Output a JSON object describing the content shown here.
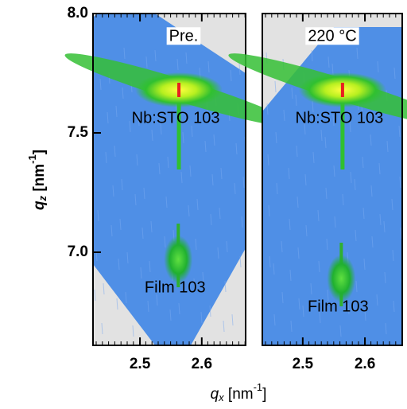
{
  "xlabel": [
    "q",
    "x",
    " [nm",
    "-1",
    "]"
  ],
  "ylabel": [
    "q",
    "z",
    " [nm",
    "-1",
    "]"
  ],
  "chart_data": [
    {
      "type": "map",
      "title": "Pre.",
      "xlim": [
        2.424,
        2.671
      ],
      "ylim": [
        6.61,
        8.0
      ],
      "xticks": [
        2.5,
        2.6
      ],
      "yticks": [
        {
          "value": 7.0,
          "label": "7.0"
        },
        7.5,
        {
          "value": 8.0,
          "label": "8.0"
        }
      ],
      "peaks": [
        {
          "name": "Nb:STO 103",
          "x": 2.563,
          "y": 7.68
        },
        {
          "name": "Film 103",
          "x": 2.562,
          "y": 6.97
        }
      ]
    },
    {
      "type": "map",
      "title": "220 °C",
      "xlim": [
        2.435,
        2.66
      ],
      "ylim": [
        6.61,
        8.0
      ],
      "xticks": [
        2.5,
        2.6
      ],
      "peaks": [
        {
          "name": "Nb:STO 103",
          "x": 2.564,
          "y": 7.68
        },
        {
          "name": "Film 103",
          "x": 2.562,
          "y": 6.89
        }
      ]
    }
  ]
}
